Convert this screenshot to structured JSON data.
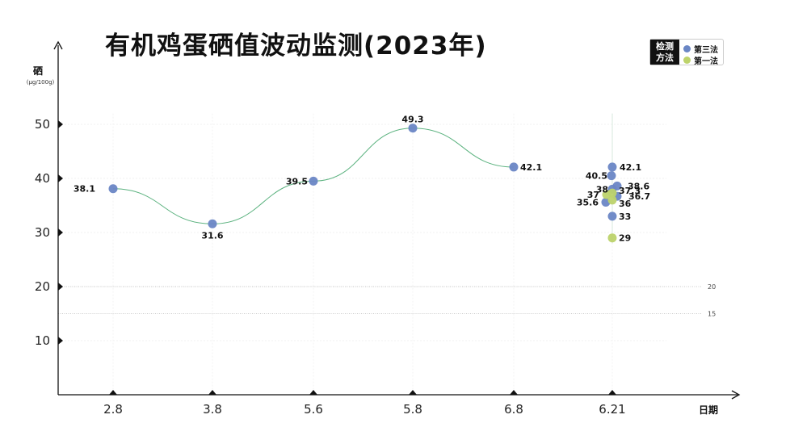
{
  "colors": {
    "series_a": "#6a86c5",
    "series_b": "#bdd36b",
    "curve": "#5bb27f",
    "axis": "#111111"
  },
  "legend": {
    "title": "检测方法"
  },
  "chart_data": {
    "type": "scatter",
    "title": "有机鸡蛋硒值波动监测(2023年)",
    "ylabel": "硒",
    "ylabel_unit": "(μg/100g)",
    "xlabel": "日期",
    "categories": [
      "2.8",
      "3.8",
      "5.6",
      "5.8",
      "6.8",
      "6.21"
    ],
    "ylim": [
      0,
      55
    ],
    "yticks": [
      10,
      20,
      30,
      40,
      50
    ],
    "reference_lines": [
      {
        "value": 20,
        "label": "20"
      },
      {
        "value": 15,
        "label": "15"
      }
    ],
    "trend_line": {
      "categories": [
        "2.8",
        "3.8",
        "5.6",
        "5.8",
        "6.8"
      ],
      "values": [
        38.1,
        31.6,
        39.5,
        49.3,
        42.1
      ]
    },
    "series": [
      {
        "name": "第三法",
        "points": [
          {
            "x": "2.8",
            "y": 38.1,
            "label": "38.1"
          },
          {
            "x": "3.8",
            "y": 31.6,
            "label": "31.6"
          },
          {
            "x": "5.6",
            "y": 39.5,
            "label": "39.5"
          },
          {
            "x": "5.8",
            "y": 49.3,
            "label": "49.3"
          },
          {
            "x": "6.8",
            "y": 42.1,
            "label": "42.1"
          },
          {
            "x": "6.21",
            "y": 42.1,
            "label": "42.1"
          },
          {
            "x": "6.21",
            "y": 40.5,
            "label": "40.5"
          },
          {
            "x": "6.21",
            "y": 38.6,
            "label": "38.6"
          },
          {
            "x": "6.21",
            "y": 38,
            "label": "38"
          },
          {
            "x": "6.21",
            "y": 36.7,
            "label": "36.7"
          },
          {
            "x": "6.21",
            "y": 35.6,
            "label": "35.6"
          },
          {
            "x": "6.21",
            "y": 33,
            "label": "33"
          }
        ]
      },
      {
        "name": "第一法",
        "points": [
          {
            "x": "6.21",
            "y": 37.3,
            "label": "37.3"
          },
          {
            "x": "6.21",
            "y": 37,
            "label": "37"
          },
          {
            "x": "6.21",
            "y": 36,
            "label": "36"
          },
          {
            "x": "6.21",
            "y": 29,
            "label": "29"
          }
        ]
      }
    ]
  }
}
